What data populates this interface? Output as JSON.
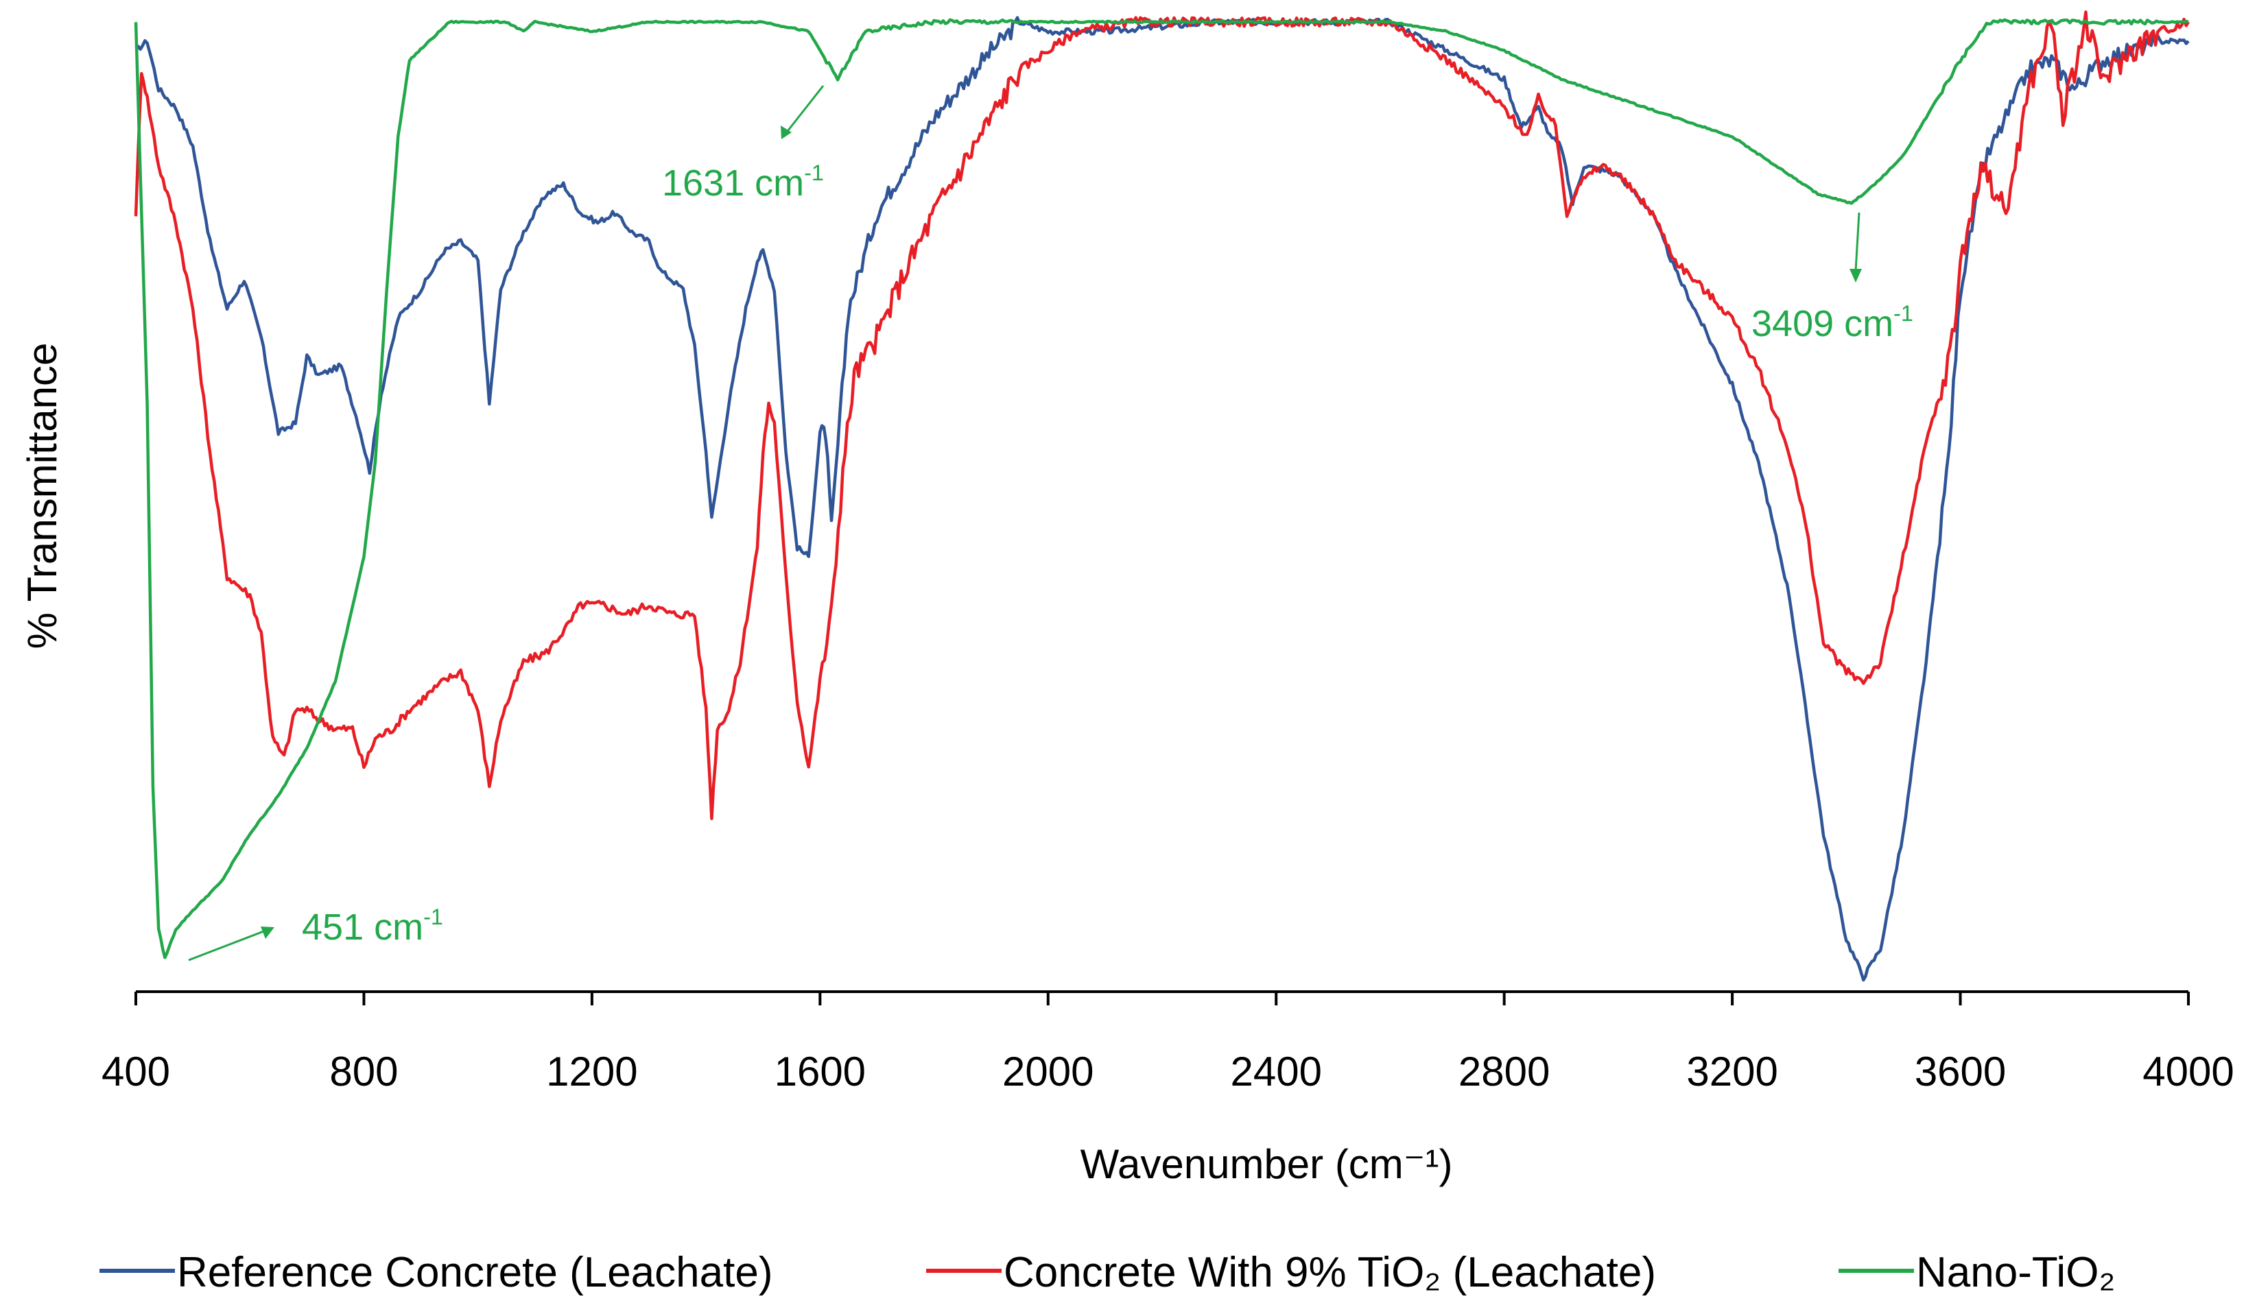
{
  "chart_data": {
    "type": "line",
    "title": "",
    "xlabel": "Wavenumber (cm⁻¹)",
    "ylabel": "% Transmittance",
    "xlim": [
      400,
      4000
    ],
    "ylim": [
      0,
      100
    ],
    "grid": false,
    "legend_position": "bottom",
    "x_ticks": [
      400,
      800,
      1200,
      1600,
      2000,
      2400,
      2800,
      3200,
      3600,
      4000
    ],
    "colors": {
      "reference": "#2F5597",
      "tio2_concrete": "#E81E25",
      "nano": "#22A84A"
    },
    "series": [
      {
        "name": "Reference Concrete (Leachate)",
        "color": "#2F5597",
        "points": [
          [
            400,
            97
          ],
          [
            420,
            98
          ],
          [
            440,
            93
          ],
          [
            470,
            91
          ],
          [
            500,
            87
          ],
          [
            530,
            77
          ],
          [
            560,
            70
          ],
          [
            590,
            73
          ],
          [
            620,
            67
          ],
          [
            650,
            57
          ],
          [
            680,
            58
          ],
          [
            700,
            65
          ],
          [
            720,
            63
          ],
          [
            760,
            64
          ],
          [
            790,
            58
          ],
          [
            810,
            53
          ],
          [
            830,
            61
          ],
          [
            860,
            69
          ],
          [
            900,
            72
          ],
          [
            940,
            76
          ],
          [
            970,
            77
          ],
          [
            1000,
            75
          ],
          [
            1020,
            60
          ],
          [
            1040,
            72
          ],
          [
            1080,
            78
          ],
          [
            1120,
            82
          ],
          [
            1150,
            83
          ],
          [
            1180,
            80
          ],
          [
            1210,
            79
          ],
          [
            1240,
            80
          ],
          [
            1270,
            78
          ],
          [
            1300,
            77
          ],
          [
            1320,
            74
          ],
          [
            1360,
            72
          ],
          [
            1380,
            66
          ],
          [
            1400,
            55
          ],
          [
            1410,
            48
          ],
          [
            1440,
            60
          ],
          [
            1470,
            70
          ],
          [
            1490,
            75
          ],
          [
            1500,
            76
          ],
          [
            1520,
            72
          ],
          [
            1540,
            55
          ],
          [
            1560,
            45
          ],
          [
            1580,
            44
          ],
          [
            1600,
            57
          ],
          [
            1610,
            57
          ],
          [
            1620,
            47
          ],
          [
            1650,
            70
          ],
          [
            1700,
            80
          ],
          [
            1800,
            90
          ],
          [
            1900,
            97
          ],
          [
            1950,
            100
          ],
          [
            2000,
            99
          ],
          [
            2100,
            99
          ],
          [
            2300,
            100
          ],
          [
            2500,
            100
          ],
          [
            2600,
            100
          ],
          [
            2700,
            97
          ],
          [
            2800,
            94
          ],
          [
            2830,
            89
          ],
          [
            2860,
            91
          ],
          [
            2880,
            88
          ],
          [
            2900,
            87
          ],
          [
            2920,
            81
          ],
          [
            2940,
            85
          ],
          [
            3000,
            84
          ],
          [
            3060,
            80
          ],
          [
            3100,
            74
          ],
          [
            3150,
            68
          ],
          [
            3200,
            62
          ],
          [
            3250,
            53
          ],
          [
            3300,
            40
          ],
          [
            3360,
            15
          ],
          [
            3400,
            4
          ],
          [
            3430,
            0
          ],
          [
            3460,
            3
          ],
          [
            3500,
            15
          ],
          [
            3540,
            33
          ],
          [
            3580,
            55
          ],
          [
            3600,
            72
          ],
          [
            3640,
            85
          ],
          [
            3680,
            90
          ],
          [
            3720,
            95
          ],
          [
            3760,
            96
          ],
          [
            3800,
            93
          ],
          [
            3850,
            96
          ],
          [
            3900,
            97
          ],
          [
            3950,
            98
          ],
          [
            4000,
            98
          ]
        ]
      },
      {
        "name": "Concrete With 9% TiO₂ (Leachate)",
        "color": "#E81E25",
        "points": [
          [
            400,
            80
          ],
          [
            410,
            95
          ],
          [
            420,
            92
          ],
          [
            440,
            85
          ],
          [
            470,
            79
          ],
          [
            500,
            70
          ],
          [
            530,
            55
          ],
          [
            560,
            42
          ],
          [
            580,
            41
          ],
          [
            600,
            40
          ],
          [
            620,
            36
          ],
          [
            640,
            25
          ],
          [
            660,
            23
          ],
          [
            680,
            28
          ],
          [
            700,
            28
          ],
          [
            720,
            27
          ],
          [
            750,
            26
          ],
          [
            780,
            26
          ],
          [
            800,
            22
          ],
          [
            820,
            25
          ],
          [
            850,
            26
          ],
          [
            880,
            28
          ],
          [
            900,
            29
          ],
          [
            940,
            31
          ],
          [
            970,
            32
          ],
          [
            1000,
            28
          ],
          [
            1020,
            20
          ],
          [
            1040,
            27
          ],
          [
            1080,
            33
          ],
          [
            1120,
            34
          ],
          [
            1160,
            37
          ],
          [
            1180,
            39
          ],
          [
            1220,
            39
          ],
          [
            1260,
            38
          ],
          [
            1300,
            39
          ],
          [
            1340,
            38
          ],
          [
            1380,
            38
          ],
          [
            1400,
            28
          ],
          [
            1410,
            17
          ],
          [
            1420,
            26
          ],
          [
            1440,
            28
          ],
          [
            1460,
            33
          ],
          [
            1480,
            41
          ],
          [
            1490,
            45
          ],
          [
            1500,
            55
          ],
          [
            1510,
            60
          ],
          [
            1520,
            58
          ],
          [
            1540,
            42
          ],
          [
            1560,
            29
          ],
          [
            1580,
            22
          ],
          [
            1600,
            31
          ],
          [
            1620,
            38
          ],
          [
            1640,
            53
          ],
          [
            1660,
            63
          ],
          [
            1700,
            67
          ],
          [
            1750,
            74
          ],
          [
            1800,
            80
          ],
          [
            1850,
            85
          ],
          [
            1900,
            90
          ],
          [
            1950,
            95
          ],
          [
            2000,
            97
          ],
          [
            2050,
            99
          ],
          [
            2150,
            100
          ],
          [
            2300,
            100
          ],
          [
            2500,
            100
          ],
          [
            2600,
            100
          ],
          [
            2650,
            98
          ],
          [
            2700,
            96
          ],
          [
            2760,
            93
          ],
          [
            2800,
            91
          ],
          [
            2840,
            88
          ],
          [
            2860,
            92
          ],
          [
            2890,
            89
          ],
          [
            2910,
            80
          ],
          [
            2930,
            83
          ],
          [
            2970,
            85
          ],
          [
            3000,
            84
          ],
          [
            3060,
            80
          ],
          [
            3100,
            75
          ],
          [
            3150,
            72
          ],
          [
            3200,
            69
          ],
          [
            3250,
            63
          ],
          [
            3300,
            55
          ],
          [
            3330,
            47
          ],
          [
            3360,
            35
          ],
          [
            3400,
            32
          ],
          [
            3430,
            31
          ],
          [
            3460,
            33
          ],
          [
            3500,
            44
          ],
          [
            3540,
            56
          ],
          [
            3570,
            62
          ],
          [
            3590,
            68
          ],
          [
            3600,
            75
          ],
          [
            3640,
            85
          ],
          [
            3680,
            80
          ],
          [
            3720,
            93
          ],
          [
            3760,
            100
          ],
          [
            3780,
            90
          ],
          [
            3820,
            100
          ],
          [
            3850,
            94
          ],
          [
            3900,
            97
          ],
          [
            3950,
            99
          ],
          [
            4000,
            100
          ]
        ]
      },
      {
        "name": "Nano-TiO₂",
        "color": "#22A84A",
        "points": [
          [
            400,
            100
          ],
          [
            420,
            60
          ],
          [
            430,
            20
          ],
          [
            440,
            5
          ],
          [
            451,
            2
          ],
          [
            470,
            5
          ],
          [
            500,
            7
          ],
          [
            550,
            10
          ],
          [
            600,
            15
          ],
          [
            650,
            19
          ],
          [
            700,
            24
          ],
          [
            750,
            31
          ],
          [
            800,
            44
          ],
          [
            820,
            54
          ],
          [
            840,
            72
          ],
          [
            860,
            88
          ],
          [
            880,
            96
          ],
          [
            950,
            100
          ],
          [
            1000,
            100
          ],
          [
            1050,
            100
          ],
          [
            1080,
            99
          ],
          [
            1100,
            100
          ],
          [
            1200,
            99
          ],
          [
            1300,
            100
          ],
          [
            1400,
            100
          ],
          [
            1500,
            100
          ],
          [
            1580,
            99
          ],
          [
            1631,
            94
          ],
          [
            1680,
            99
          ],
          [
            1800,
            100
          ],
          [
            2000,
            100
          ],
          [
            2200,
            100
          ],
          [
            2400,
            100
          ],
          [
            2600,
            100
          ],
          [
            2700,
            99
          ],
          [
            2800,
            97
          ],
          [
            2900,
            94
          ],
          [
            3000,
            92
          ],
          [
            3100,
            90
          ],
          [
            3200,
            88
          ],
          [
            3300,
            84
          ],
          [
            3350,
            82
          ],
          [
            3409,
            81
          ],
          [
            3450,
            83
          ],
          [
            3500,
            86
          ],
          [
            3560,
            92
          ],
          [
            3600,
            96
          ],
          [
            3650,
            100
          ],
          [
            3800,
            100
          ],
          [
            3900,
            100
          ],
          [
            4000,
            100
          ]
        ]
      }
    ],
    "annotations": [
      {
        "text": "451 cm",
        "superscript": "-1",
        "x": 451,
        "y": 2,
        "color": "#22A84A"
      },
      {
        "text": "1631 cm",
        "superscript": "-1",
        "x": 1631,
        "y": 94,
        "color": "#22A84A"
      },
      {
        "text": "3409 cm",
        "superscript": "-1",
        "x": 3409,
        "y": 81,
        "color": "#22A84A"
      }
    ]
  }
}
